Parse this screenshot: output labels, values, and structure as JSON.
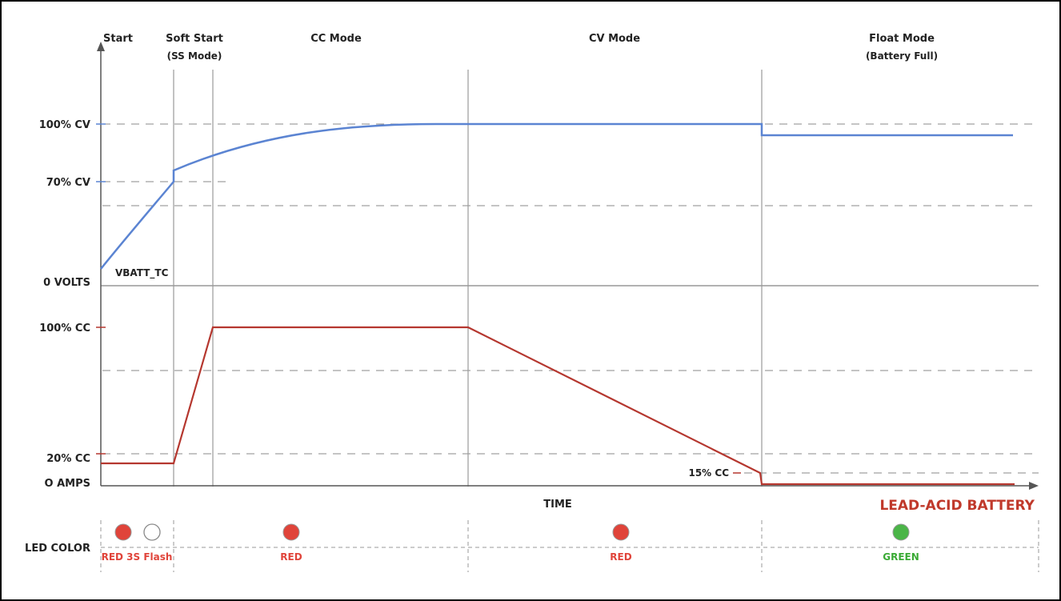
{
  "phases": {
    "start": "Start",
    "soft_start": "Soft Start",
    "soft_start_sub": "(SS Mode)",
    "cc_mode": "CC Mode",
    "cv_mode": "CV Mode",
    "float_mode": "Float Mode",
    "float_mode_sub": "(Battery Full)"
  },
  "voltage_axis": {
    "cv100": "100% CV",
    "cv70": "70% CV",
    "zero": "0 VOLTS",
    "trace_label": "VBATT_TC"
  },
  "current_axis": {
    "cc100": "100% CC",
    "cc20": "20% CC",
    "zero": "O AMPS",
    "cc15": "15% CC"
  },
  "time_label": "TIME",
  "title": "LEAD-ACID BATTERY",
  "led": {
    "label": "LED COLOR",
    "segments": [
      {
        "label": "RED 3S Flash",
        "state": "red-flash"
      },
      {
        "label": "RED",
        "state": "red"
      },
      {
        "label": "RED",
        "state": "red"
      },
      {
        "label": "GREEN",
        "state": "green"
      }
    ]
  },
  "colors": {
    "voltage_trace": "#5b84d2",
    "current_trace": "#b5372f",
    "led_red": "#e0443a",
    "led_green": "#4bb548",
    "title": "#c0392b"
  }
}
